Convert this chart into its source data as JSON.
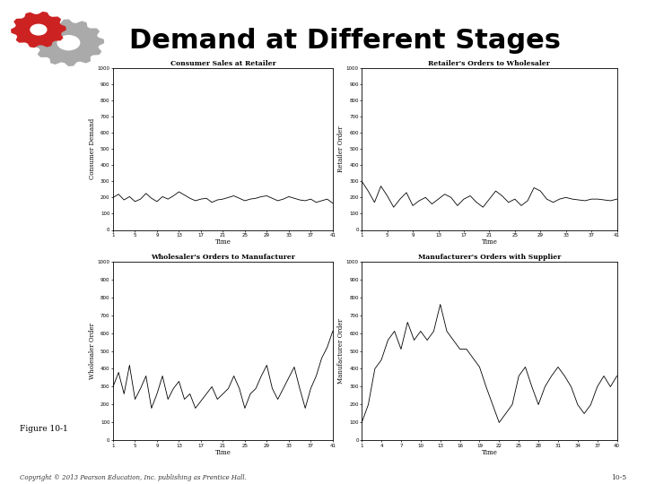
{
  "title": "Demand at Different Stages",
  "title_fontsize": 22,
  "background_color": "#ffffff",
  "fig_width": 7.2,
  "fig_height": 5.4,
  "subplots": [
    {
      "title": "Consumer Sales at Retailer",
      "ylabel": "Consumer Demand",
      "xlabel": "Time",
      "ylim": [
        0,
        1000
      ],
      "yticks": [
        0,
        100,
        200,
        300,
        400,
        500,
        600,
        700,
        800,
        900,
        1000
      ],
      "xticks": [
        1,
        5,
        9,
        13,
        17,
        21,
        25,
        29,
        33,
        37,
        41
      ],
      "data": [
        200,
        220,
        185,
        205,
        175,
        190,
        225,
        195,
        175,
        205,
        190,
        210,
        235,
        215,
        195,
        180,
        190,
        195,
        170,
        185,
        190,
        200,
        210,
        195,
        180,
        190,
        195,
        205,
        210,
        195,
        180,
        190,
        205,
        195,
        185,
        180,
        190,
        170,
        180,
        190,
        165
      ]
    },
    {
      "title": "Retailer's Orders to Wholesaler",
      "ylabel": "Retailer Order",
      "xlabel": "Time",
      "ylim": [
        0,
        1000
      ],
      "yticks": [
        0,
        100,
        200,
        300,
        400,
        500,
        600,
        700,
        800,
        900,
        1000
      ],
      "xticks": [
        1,
        5,
        9,
        13,
        17,
        21,
        25,
        29,
        33,
        37,
        41
      ],
      "data": [
        300,
        240,
        170,
        270,
        210,
        140,
        190,
        230,
        150,
        180,
        200,
        160,
        190,
        220,
        200,
        150,
        190,
        210,
        170,
        140,
        190,
        240,
        210,
        170,
        190,
        150,
        180,
        260,
        240,
        190,
        170,
        190,
        200,
        190,
        185,
        180,
        190,
        190,
        185,
        180,
        190
      ]
    },
    {
      "title": "Wholesaler's Orders to Manufacturer",
      "ylabel": "Wholesaler Order",
      "xlabel": "Time",
      "ylim": [
        0,
        1000
      ],
      "yticks": [
        0,
        100,
        200,
        300,
        400,
        500,
        600,
        700,
        800,
        900,
        1000
      ],
      "xticks": [
        1,
        5,
        9,
        13,
        17,
        21,
        25,
        29,
        33,
        37,
        41
      ],
      "data": [
        300,
        380,
        260,
        420,
        230,
        290,
        360,
        180,
        260,
        360,
        230,
        290,
        330,
        230,
        260,
        180,
        220,
        260,
        300,
        230,
        260,
        290,
        360,
        290,
        180,
        260,
        290,
        360,
        420,
        290,
        230,
        290,
        350,
        410,
        290,
        180,
        290,
        360,
        460,
        520,
        610
      ]
    },
    {
      "title": "Manufacturer's Orders with Supplier",
      "ylabel": "Manufacturer Order",
      "xlabel": "Time",
      "ylim": [
        0,
        1000
      ],
      "yticks": [
        0,
        100,
        200,
        300,
        400,
        500,
        600,
        700,
        800,
        900,
        1000
      ],
      "xticks": [
        1,
        4,
        7,
        10,
        13,
        16,
        19,
        22,
        25,
        28,
        31,
        34,
        37,
        40
      ],
      "data": [
        100,
        200,
        400,
        450,
        560,
        610,
        510,
        660,
        560,
        610,
        560,
        610,
        760,
        610,
        560,
        510,
        510,
        460,
        410,
        300,
        200,
        100,
        150,
        200,
        360,
        410,
        300,
        200,
        300,
        360,
        410,
        360,
        300,
        200,
        150,
        200,
        300,
        360,
        300,
        360
      ]
    }
  ],
  "figure10_label": "Figure 10-1",
  "copyright_text": "Copyright © 2013 Pearson Education, Inc. publishing as Prentice Hall.",
  "page_num": "10-5"
}
